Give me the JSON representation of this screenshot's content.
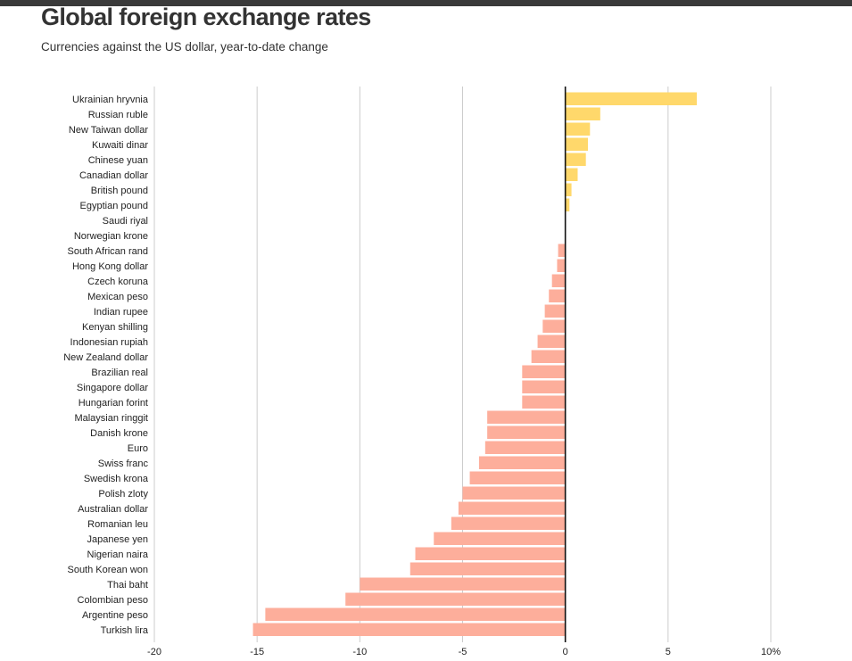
{
  "header": {
    "title": "Global foreign exchange rates",
    "subtitle": "Currencies against the US dollar, year-to-date change"
  },
  "chart_data": {
    "type": "bar",
    "orientation": "horizontal",
    "title": "Global foreign exchange rates",
    "subtitle": "Currencies against the US dollar, year-to-date change",
    "xlabel": "",
    "ylabel": "",
    "xlim": [
      -20,
      10
    ],
    "x_ticks": [
      -20,
      -15,
      -10,
      -5,
      0,
      5,
      10
    ],
    "x_tick_labels": [
      "-20",
      "-15",
      "-10",
      "-5",
      "0",
      "5",
      "10%"
    ],
    "grid": true,
    "colors": {
      "positive": "#ffd86b",
      "negative": "#fdae9b",
      "zero_line": "#111111",
      "grid": "#cccccc"
    },
    "categories": [
      "Ukrainian hryvnia",
      "Russian ruble",
      "New Taiwan dollar",
      "Kuwaiti dinar",
      "Chinese yuan",
      "Canadian dollar",
      "British pound",
      "Egyptian pound",
      "Saudi riyal",
      "Norwegian krone",
      "South African rand",
      "Hong Kong dollar",
      "Czech koruna",
      "Mexican peso",
      "Indian rupee",
      "Kenyan shilling",
      "Indonesian rupiah",
      "New Zealand dollar",
      "Brazilian real",
      "Singapore dollar",
      "Hungarian forint",
      "Malaysian ringgit",
      "Danish krone",
      "Euro",
      "Swiss franc",
      "Swedish krona",
      "Polish zloty",
      "Australian dollar",
      "Romanian leu",
      "Japanese yen",
      "Nigerian naira",
      "South Korean won",
      "Thai baht",
      "Colombian peso",
      "Argentine peso",
      "Turkish lira"
    ],
    "values": [
      6.4,
      1.7,
      1.2,
      1.1,
      1.0,
      0.6,
      0.3,
      0.2,
      0.0,
      0.0,
      -0.35,
      -0.4,
      -0.65,
      -0.8,
      -1.0,
      -1.1,
      -1.35,
      -1.65,
      -2.1,
      -2.1,
      -2.1,
      -3.8,
      -3.8,
      -3.9,
      -4.2,
      -4.65,
      -5.0,
      -5.2,
      -5.55,
      -6.4,
      -7.3,
      -7.55,
      -10.0,
      -10.7,
      -14.6,
      -15.2
    ]
  }
}
